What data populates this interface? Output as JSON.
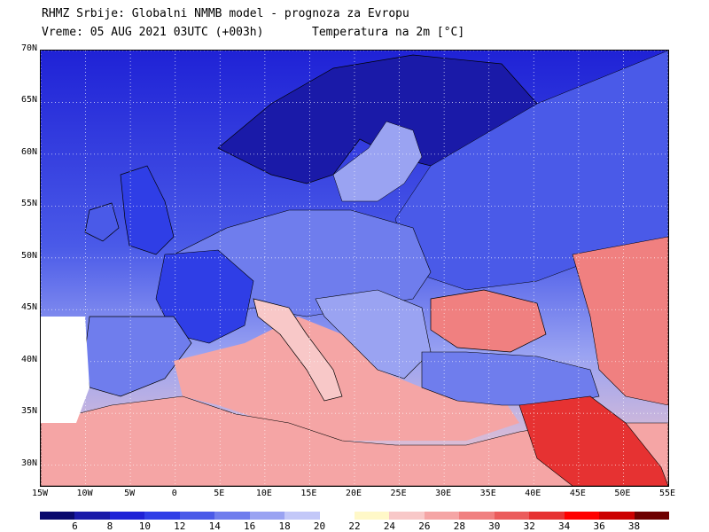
{
  "header": {
    "line1": "RHMZ Srbije: Globalni NMMB model - prognoza za Evropu",
    "line2_time": "Vreme: 05 AUG 2021 03UTC (+003h)",
    "line2_var": "Temperatura na 2m [°C]"
  },
  "axes": {
    "lat_labels": [
      "70N",
      "65N",
      "60N",
      "55N",
      "50N",
      "45N",
      "40N",
      "35N",
      "30N"
    ],
    "lat_values": [
      70,
      65,
      60,
      55,
      50,
      45,
      40,
      35,
      30
    ],
    "lon_labels": [
      "15W",
      "10W",
      "5W",
      "0",
      "5E",
      "10E",
      "15E",
      "20E",
      "25E",
      "30E",
      "35E",
      "40E",
      "45E",
      "50E",
      "55E"
    ],
    "lon_values": [
      -15,
      -10,
      -5,
      0,
      5,
      10,
      15,
      20,
      25,
      30,
      35,
      40,
      45,
      50,
      55
    ],
    "lat_range": [
      28,
      70
    ],
    "lon_range": [
      -15,
      55
    ]
  },
  "legend": {
    "labels": [
      "6",
      "8",
      "10",
      "12",
      "14",
      "16",
      "18",
      "20",
      "22",
      "24",
      "26",
      "28",
      "30",
      "32",
      "34",
      "36",
      "38"
    ],
    "colors": [
      "#0a0a6e",
      "#1a1aa8",
      "#1f22d6",
      "#2f3ee6",
      "#4a5ae8",
      "#6f7ded",
      "#9aa3f2",
      "#c3c8f8",
      "#ffffff",
      "#fff8c8",
      "#f8c8c8",
      "#f5a5a5",
      "#f08080",
      "#eb5c5c",
      "#e63232",
      "#ff0000",
      "#cc0000",
      "#6e0000"
    ]
  },
  "map": {
    "sea_color": "#3b45d6",
    "land_colors": {
      "north": "#1a1aa8",
      "central": "#6f7ded",
      "south": "#f5a5a5",
      "hot": "#e63232"
    }
  }
}
